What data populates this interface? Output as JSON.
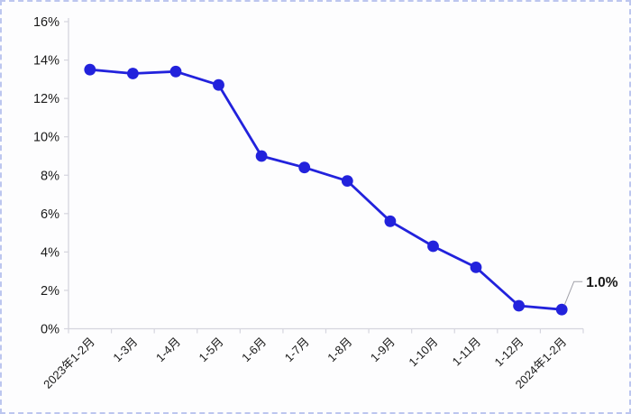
{
  "window": {
    "background": "#fdfdfe",
    "border_color": "#bcc6ef"
  },
  "chart_data": {
    "type": "line",
    "title": "",
    "xlabel": "",
    "ylabel": "",
    "categories": [
      "2023年1-2月",
      "1-3月",
      "1-4月",
      "1-5月",
      "1-6月",
      "1-7月",
      "1-8月",
      "1-9月",
      "1-10月",
      "1-11月",
      "1-12月",
      "2024年1-2月"
    ],
    "values": [
      13.5,
      13.3,
      13.4,
      12.7,
      9.0,
      8.4,
      7.7,
      5.6,
      4.3,
      3.2,
      1.2,
      1.0
    ],
    "ylim": [
      0,
      16
    ],
    "y_tick_step": 2,
    "y_tick_labels": [
      "0%",
      "2%",
      "4%",
      "6%",
      "8%",
      "10%",
      "12%",
      "14%",
      "16%"
    ],
    "grid": false,
    "legend": "none",
    "line_color": "#2222dc",
    "marker_color": "#2222dc",
    "axis_color": "#d5d5de",
    "label_color": "#1a1a1a",
    "annotation": {
      "text": "1.0%",
      "target_index": 11,
      "leader_color": "#a0a0a8"
    }
  }
}
